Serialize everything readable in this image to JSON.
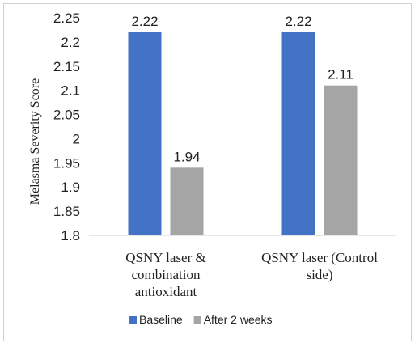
{
  "chart_data": {
    "type": "bar",
    "title": "",
    "xlabel": "",
    "ylabel": "Melasma Severity Score",
    "ylim": [
      1.8,
      2.25
    ],
    "yticks": [
      "1.8",
      "1.85",
      "1.9",
      "1.95",
      "2",
      "2.05",
      "2.1",
      "2.15",
      "2.2",
      "2.25"
    ],
    "categories": [
      [
        "QSNY laser &",
        "combination",
        "antioxidant"
      ],
      [
        "QSNY laser (Control",
        "side)"
      ]
    ],
    "series": [
      {
        "name": "Baseline",
        "color": "#4472C4",
        "values": [
          2.22,
          2.22
        ],
        "labels": [
          "2.22",
          "2.22"
        ]
      },
      {
        "name": "After 2 weeks",
        "color": "#A5A5A5",
        "values": [
          1.94,
          2.11
        ],
        "labels": [
          "1.94",
          "2.11"
        ]
      }
    ],
    "grid": false,
    "legend_position": "bottom"
  }
}
